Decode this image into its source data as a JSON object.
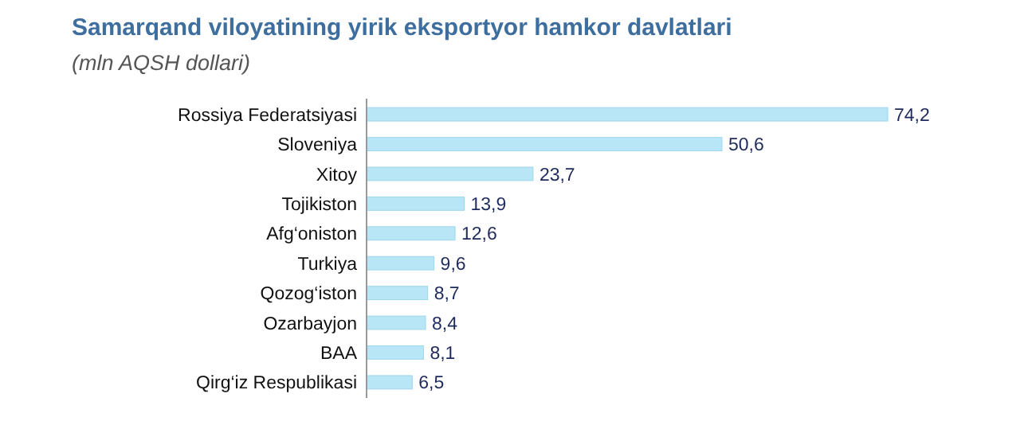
{
  "chart_data": {
    "type": "bar",
    "orientation": "horizontal",
    "title": "Samarqand viloyatining yirik eksportyor hamkor davlatlari",
    "subtitle": "(mln AQSH dollari)",
    "categories": [
      "Rossiya Federatsiyasi",
      "Sloveniya",
      "Xitoy",
      "Tojikiston",
      "Afg‘oniston",
      "Turkiya",
      "Qozog‘iston",
      "Ozarbayjon",
      "BAA",
      "Qirg‘iz Respublikasi"
    ],
    "values": [
      74.2,
      50.6,
      23.7,
      13.9,
      12.6,
      9.6,
      8.7,
      8.4,
      8.1,
      6.5
    ],
    "value_labels": [
      "74,2",
      "50,6",
      "23,7",
      "13,9",
      "12,6",
      "9,6",
      "8,7",
      "8,4",
      "8,1",
      "6,5"
    ],
    "color": "#b8e6f6"
  }
}
